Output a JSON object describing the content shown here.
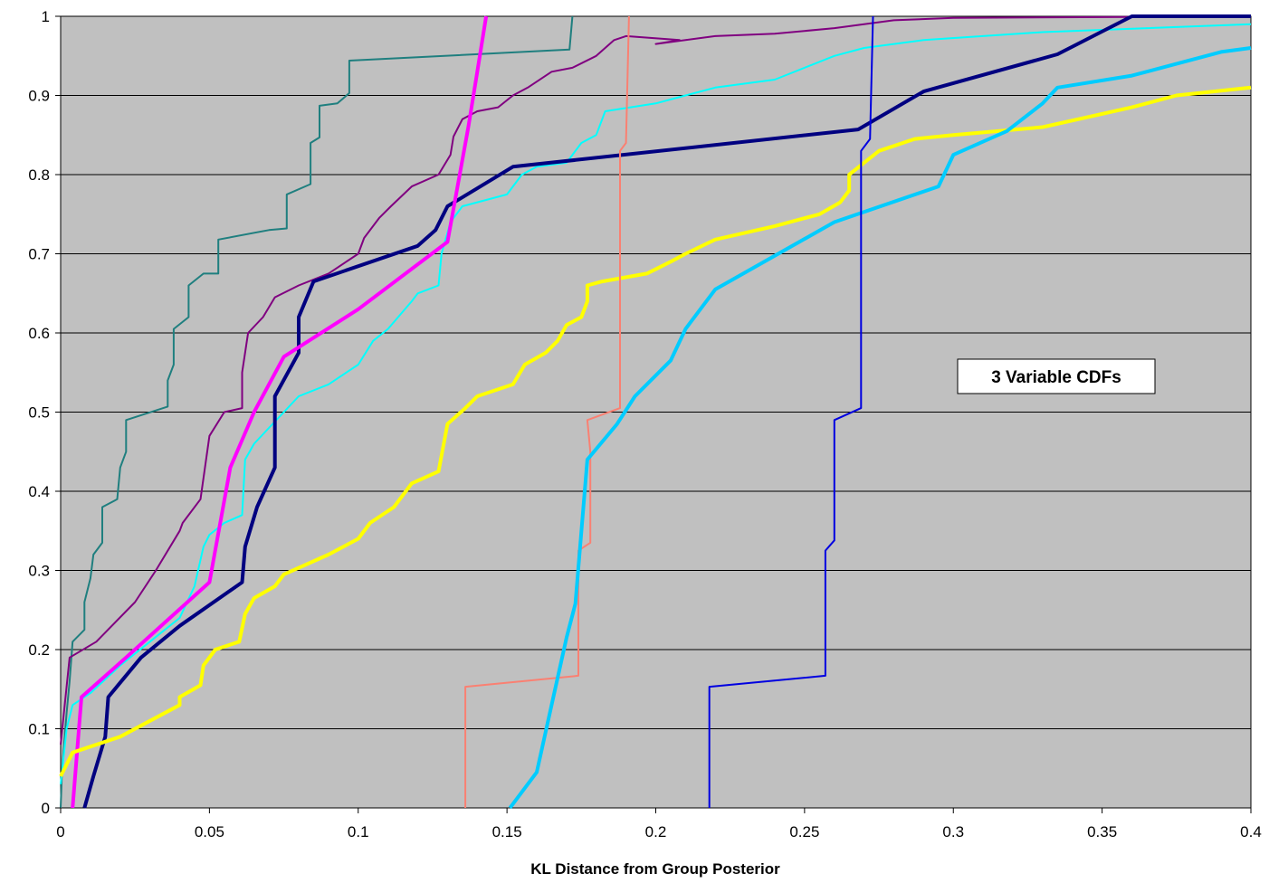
{
  "chart_data": {
    "type": "line",
    "title": "",
    "xlabel": "KL Distance from Group Posterior",
    "ylabel": "",
    "xlim": [
      0,
      0.4
    ],
    "ylim": [
      0,
      1
    ],
    "x_ticks": [
      "0",
      "0.05",
      "0.1",
      "0.15",
      "0.2",
      "0.25",
      "0.3",
      "0.35",
      "0.4"
    ],
    "y_ticks": [
      "0",
      "0.1",
      "0.2",
      "0.3",
      "0.4",
      "0.5",
      "0.6",
      "0.7",
      "0.8",
      "0.9",
      "1"
    ],
    "plot_background": "#c0c0c0",
    "grid": "horizontal",
    "legend": "none",
    "annotation": "3 Variable CDFs",
    "series": [
      {
        "color": "#1f7f7f",
        "width": 2,
        "points": [
          [
            0,
            0
          ],
          [
            0.0005,
            0.05
          ],
          [
            0.002,
            0.12
          ],
          [
            0.003,
            0.16
          ],
          [
            0.004,
            0.21
          ],
          [
            0.008,
            0.225
          ],
          [
            0.008,
            0.26
          ],
          [
            0.01,
            0.29
          ],
          [
            0.011,
            0.32
          ],
          [
            0.014,
            0.335
          ],
          [
            0.014,
            0.38
          ],
          [
            0.019,
            0.39
          ],
          [
            0.02,
            0.43
          ],
          [
            0.022,
            0.45
          ],
          [
            0.022,
            0.49
          ],
          [
            0.036,
            0.507
          ],
          [
            0.036,
            0.54
          ],
          [
            0.038,
            0.56
          ],
          [
            0.038,
            0.605
          ],
          [
            0.043,
            0.62
          ],
          [
            0.043,
            0.66
          ],
          [
            0.048,
            0.675
          ],
          [
            0.053,
            0.675
          ],
          [
            0.053,
            0.718
          ],
          [
            0.07,
            0.73
          ],
          [
            0.076,
            0.732
          ],
          [
            0.076,
            0.775
          ],
          [
            0.084,
            0.788
          ],
          [
            0.084,
            0.84
          ],
          [
            0.087,
            0.847
          ],
          [
            0.087,
            0.887
          ],
          [
            0.093,
            0.89
          ],
          [
            0.097,
            0.903
          ],
          [
            0.097,
            0.944
          ],
          [
            0.171,
            0.958
          ],
          [
            0.172,
            1.0
          ]
        ]
      },
      {
        "color": "#800080",
        "width": 2,
        "points": [
          [
            0,
            0.08
          ],
          [
            0.003,
            0.19
          ],
          [
            0.012,
            0.21
          ],
          [
            0.025,
            0.26
          ],
          [
            0.032,
            0.3
          ],
          [
            0.04,
            0.35
          ],
          [
            0.041,
            0.36
          ],
          [
            0.047,
            0.39
          ],
          [
            0.05,
            0.47
          ],
          [
            0.055,
            0.5
          ],
          [
            0.061,
            0.505
          ],
          [
            0.061,
            0.55
          ],
          [
            0.063,
            0.6
          ],
          [
            0.068,
            0.62
          ],
          [
            0.072,
            0.645
          ],
          [
            0.08,
            0.66
          ],
          [
            0.09,
            0.675
          ],
          [
            0.1,
            0.7
          ],
          [
            0.102,
            0.72
          ],
          [
            0.107,
            0.745
          ],
          [
            0.111,
            0.76
          ],
          [
            0.118,
            0.785
          ],
          [
            0.127,
            0.8
          ],
          [
            0.131,
            0.825
          ],
          [
            0.132,
            0.848
          ],
          [
            0.135,
            0.87
          ],
          [
            0.14,
            0.88
          ],
          [
            0.147,
            0.885
          ],
          [
            0.152,
            0.9
          ],
          [
            0.157,
            0.91
          ],
          [
            0.165,
            0.93
          ],
          [
            0.172,
            0.935
          ],
          [
            0.18,
            0.95
          ],
          [
            0.183,
            0.96
          ],
          [
            0.186,
            0.97
          ],
          [
            0.19,
            0.975
          ],
          [
            0.208,
            0.97
          ],
          [
            0.2,
            0.965
          ],
          [
            0.22,
            0.975
          ],
          [
            0.24,
            0.978
          ],
          [
            0.26,
            0.985
          ],
          [
            0.28,
            0.995
          ],
          [
            0.3,
            0.998
          ],
          [
            0.4,
            1.0
          ]
        ]
      },
      {
        "color": "#00ffff",
        "width": 2,
        "points": [
          [
            0,
            0.03
          ],
          [
            0.002,
            0.1
          ],
          [
            0.004,
            0.13
          ],
          [
            0.01,
            0.145
          ],
          [
            0.02,
            0.18
          ],
          [
            0.03,
            0.21
          ],
          [
            0.04,
            0.24
          ],
          [
            0.045,
            0.28
          ],
          [
            0.048,
            0.33
          ],
          [
            0.05,
            0.345
          ],
          [
            0.055,
            0.36
          ],
          [
            0.061,
            0.37
          ],
          [
            0.062,
            0.44
          ],
          [
            0.065,
            0.46
          ],
          [
            0.07,
            0.48
          ],
          [
            0.075,
            0.5
          ],
          [
            0.08,
            0.52
          ],
          [
            0.09,
            0.535
          ],
          [
            0.1,
            0.56
          ],
          [
            0.105,
            0.59
          ],
          [
            0.11,
            0.605
          ],
          [
            0.118,
            0.64
          ],
          [
            0.12,
            0.65
          ],
          [
            0.127,
            0.66
          ],
          [
            0.128,
            0.7
          ],
          [
            0.131,
            0.74
          ],
          [
            0.135,
            0.76
          ],
          [
            0.14,
            0.765
          ],
          [
            0.15,
            0.775
          ],
          [
            0.155,
            0.8
          ],
          [
            0.16,
            0.81
          ],
          [
            0.17,
            0.815
          ],
          [
            0.175,
            0.84
          ],
          [
            0.18,
            0.85
          ],
          [
            0.183,
            0.88
          ],
          [
            0.2,
            0.89
          ],
          [
            0.21,
            0.9
          ],
          [
            0.22,
            0.91
          ],
          [
            0.24,
            0.92
          ],
          [
            0.26,
            0.95
          ],
          [
            0.27,
            0.96
          ],
          [
            0.29,
            0.97
          ],
          [
            0.33,
            0.98
          ],
          [
            0.4,
            0.99
          ]
        ]
      },
      {
        "color": "#000080",
        "width": 4,
        "points": [
          [
            0.008,
            0
          ],
          [
            0.011,
            0.04
          ],
          [
            0.015,
            0.09
          ],
          [
            0.016,
            0.14
          ],
          [
            0.027,
            0.19
          ],
          [
            0.04,
            0.23
          ],
          [
            0.061,
            0.285
          ],
          [
            0.062,
            0.33
          ],
          [
            0.066,
            0.38
          ],
          [
            0.072,
            0.43
          ],
          [
            0.072,
            0.52
          ],
          [
            0.08,
            0.575
          ],
          [
            0.08,
            0.62
          ],
          [
            0.085,
            0.665
          ],
          [
            0.12,
            0.71
          ],
          [
            0.126,
            0.73
          ],
          [
            0.13,
            0.76
          ],
          [
            0.152,
            0.81
          ],
          [
            0.268,
            0.857
          ],
          [
            0.29,
            0.905
          ],
          [
            0.335,
            0.952
          ],
          [
            0.36,
            1.0
          ],
          [
            0.4,
            1.0
          ]
        ]
      },
      {
        "color": "#ff00ff",
        "width": 4,
        "points": [
          [
            0.004,
            0
          ],
          [
            0.007,
            0.14
          ],
          [
            0.016,
            0.17
          ],
          [
            0.022,
            0.19
          ],
          [
            0.05,
            0.285
          ],
          [
            0.057,
            0.43
          ],
          [
            0.065,
            0.5
          ],
          [
            0.075,
            0.57
          ],
          [
            0.1,
            0.63
          ],
          [
            0.13,
            0.715
          ],
          [
            0.137,
            0.86
          ],
          [
            0.14,
            0.93
          ],
          [
            0.143,
            1.0
          ]
        ]
      },
      {
        "color": "#ffff00",
        "width": 4,
        "points": [
          [
            0,
            0.04
          ],
          [
            0.004,
            0.07
          ],
          [
            0.02,
            0.09
          ],
          [
            0.03,
            0.11
          ],
          [
            0.04,
            0.13
          ],
          [
            0.04,
            0.14
          ],
          [
            0.047,
            0.155
          ],
          [
            0.048,
            0.18
          ],
          [
            0.052,
            0.2
          ],
          [
            0.06,
            0.21
          ],
          [
            0.062,
            0.245
          ],
          [
            0.065,
            0.265
          ],
          [
            0.072,
            0.28
          ],
          [
            0.075,
            0.295
          ],
          [
            0.09,
            0.32
          ],
          [
            0.1,
            0.34
          ],
          [
            0.104,
            0.36
          ],
          [
            0.112,
            0.38
          ],
          [
            0.118,
            0.41
          ],
          [
            0.127,
            0.425
          ],
          [
            0.13,
            0.485
          ],
          [
            0.136,
            0.505
          ],
          [
            0.14,
            0.52
          ],
          [
            0.152,
            0.535
          ],
          [
            0.156,
            0.56
          ],
          [
            0.163,
            0.575
          ],
          [
            0.167,
            0.59
          ],
          [
            0.17,
            0.61
          ],
          [
            0.175,
            0.62
          ],
          [
            0.177,
            0.64
          ],
          [
            0.177,
            0.66
          ],
          [
            0.182,
            0.665
          ],
          [
            0.197,
            0.675
          ],
          [
            0.205,
            0.69
          ],
          [
            0.21,
            0.7
          ],
          [
            0.22,
            0.718
          ],
          [
            0.24,
            0.735
          ],
          [
            0.255,
            0.75
          ],
          [
            0.262,
            0.765
          ],
          [
            0.265,
            0.78
          ],
          [
            0.265,
            0.8
          ],
          [
            0.27,
            0.815
          ],
          [
            0.275,
            0.83
          ],
          [
            0.287,
            0.845
          ],
          [
            0.3,
            0.85
          ],
          [
            0.33,
            0.86
          ],
          [
            0.36,
            0.885
          ],
          [
            0.375,
            0.9
          ],
          [
            0.4,
            0.91
          ]
        ]
      },
      {
        "color": "#fa8072",
        "width": 2,
        "points": [
          [
            0.136,
            0
          ],
          [
            0.136,
            0.153
          ],
          [
            0.174,
            0.167
          ],
          [
            0.174,
            0.325
          ],
          [
            0.178,
            0.335
          ],
          [
            0.178,
            0.45
          ],
          [
            0.177,
            0.49
          ],
          [
            0.188,
            0.505
          ],
          [
            0.188,
            0.83
          ],
          [
            0.19,
            0.84
          ],
          [
            0.191,
            1.0
          ]
        ]
      },
      {
        "color": "#00ccff",
        "width": 4,
        "points": [
          [
            0.151,
            0
          ],
          [
            0.16,
            0.045
          ],
          [
            0.165,
            0.13
          ],
          [
            0.17,
            0.215
          ],
          [
            0.173,
            0.258
          ],
          [
            0.177,
            0.44
          ],
          [
            0.187,
            0.485
          ],
          [
            0.193,
            0.52
          ],
          [
            0.205,
            0.565
          ],
          [
            0.21,
            0.605
          ],
          [
            0.22,
            0.655
          ],
          [
            0.26,
            0.74
          ],
          [
            0.295,
            0.785
          ],
          [
            0.3,
            0.825
          ],
          [
            0.318,
            0.855
          ],
          [
            0.33,
            0.89
          ],
          [
            0.335,
            0.91
          ],
          [
            0.36,
            0.925
          ],
          [
            0.39,
            0.955
          ],
          [
            0.4,
            0.96
          ]
        ]
      },
      {
        "color": "#0000e0",
        "width": 2,
        "points": [
          [
            0.218,
            0
          ],
          [
            0.218,
            0.153
          ],
          [
            0.257,
            0.167
          ],
          [
            0.257,
            0.325
          ],
          [
            0.26,
            0.338
          ],
          [
            0.26,
            0.49
          ],
          [
            0.269,
            0.505
          ],
          [
            0.269,
            0.83
          ],
          [
            0.272,
            0.845
          ],
          [
            0.273,
            1.0
          ]
        ]
      }
    ]
  }
}
